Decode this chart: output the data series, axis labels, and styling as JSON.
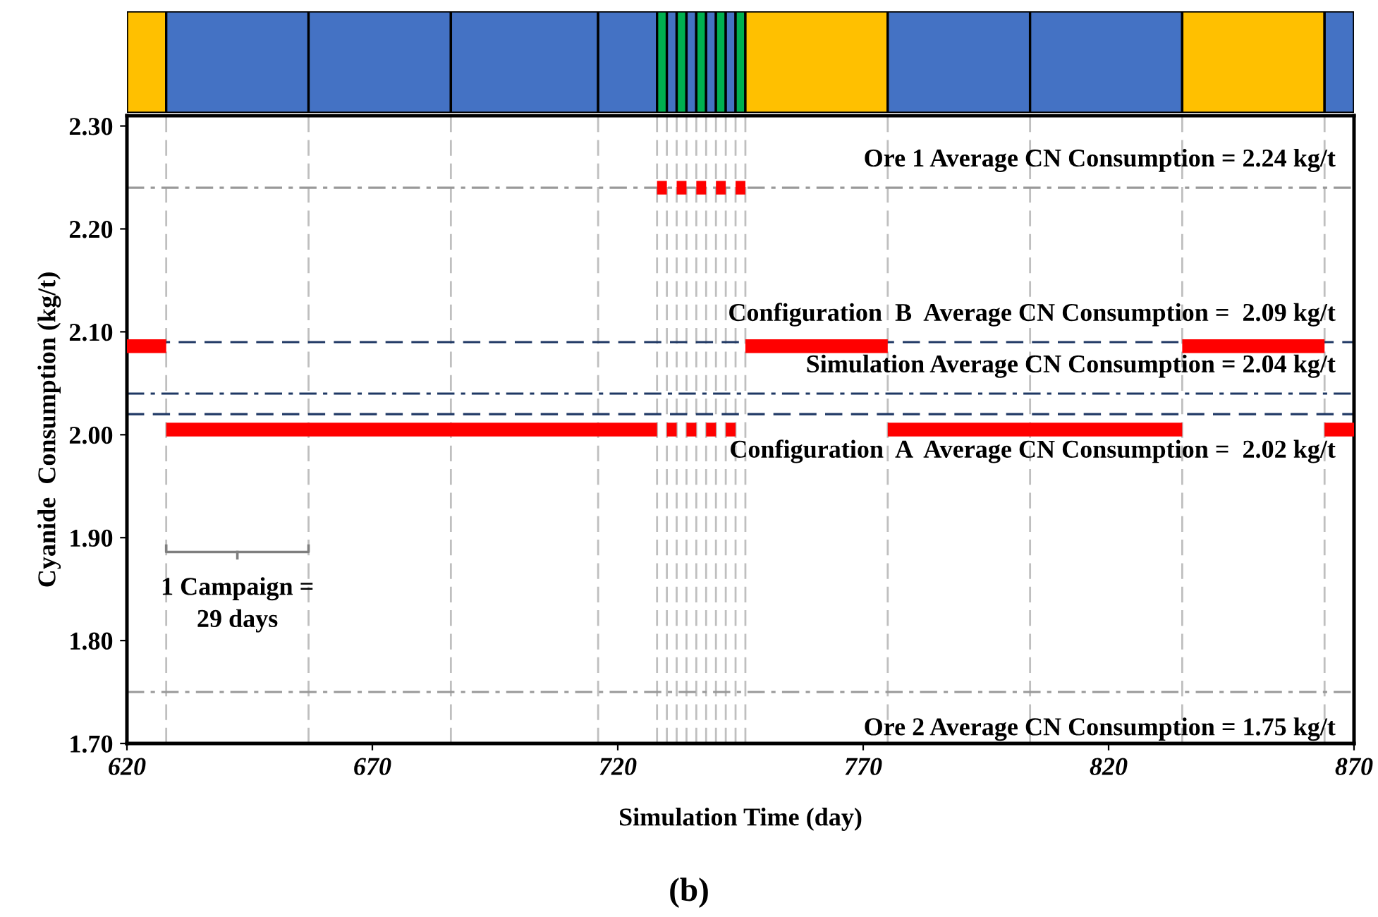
{
  "chart_data": {
    "type": "step",
    "xlabel": "Simulation Time (day)",
    "ylabel": "Cyanide  Consumption (kg/t)",
    "xlim": [
      620,
      870
    ],
    "xticks": [
      620,
      670,
      720,
      770,
      820,
      870
    ],
    "ylim": [
      1.7,
      2.31
    ],
    "yticks": [
      {
        "value": 1.7,
        "label": "1.70"
      },
      {
        "value": 1.8,
        "label": "1.80"
      },
      {
        "value": 1.9,
        "label": "1.90"
      },
      {
        "value": 2.0,
        "label": "2.00"
      },
      {
        "value": 2.1,
        "label": "2.10"
      },
      {
        "value": 2.2,
        "label": "2.20"
      },
      {
        "value": 2.3,
        "label": "2.30"
      }
    ],
    "grid": false,
    "legend": false,
    "marker": "none",
    "line_style": "solid",
    "series": [
      {
        "color": "#ff0000",
        "x": [
          620,
          628,
          728,
          730,
          732,
          734,
          736,
          738,
          740,
          742,
          744,
          746,
          775,
          835,
          864,
          870
        ],
        "values": [
          2.086,
          2.005,
          2.24,
          2.005,
          2.24,
          2.005,
          2.24,
          2.005,
          2.24,
          2.005,
          2.24,
          2.086,
          2.005,
          2.086,
          2.005,
          2.005
        ]
      }
    ],
    "ref_lines": [
      {
        "axis": "y",
        "value": 2.24,
        "label": "Ore 1 Average CN Consumption = 2.24 kg/t",
        "color": "#999999",
        "line_style": "dashdot"
      },
      {
        "axis": "y",
        "value": 2.09,
        "label": "Configuration  B  Average CN Consumption =  2.09 kg/t",
        "color": "#1f3864",
        "line_style": "dashed"
      },
      {
        "axis": "y",
        "value": 2.04,
        "label": "Simulation Average CN Consumption = 2.04 kg/t",
        "color": "#1f3864",
        "line_style": "dashdot"
      },
      {
        "axis": "y",
        "value": 2.02,
        "label": "Configuration  A  Average CN Consumption =  2.02 kg/t",
        "color": "#1f3864",
        "line_style": "dashed"
      },
      {
        "axis": "y",
        "value": 1.75,
        "label": "Ore 2 Average CN Consumption = 1.75 kg/t",
        "color": "#999999",
        "line_style": "dashdot"
      },
      {
        "axis": "x",
        "value": 628,
        "color": "#bfbfbf",
        "line_style": "dashed"
      },
      {
        "axis": "x",
        "value": 657,
        "color": "#bfbfbf",
        "line_style": "dashed"
      },
      {
        "axis": "x",
        "value": 686,
        "color": "#bfbfbf",
        "line_style": "dashed"
      },
      {
        "axis": "x",
        "value": 716,
        "color": "#bfbfbf",
        "line_style": "dashed"
      },
      {
        "axis": "x",
        "value": 728,
        "color": "#bfbfbf",
        "line_style": "dashed"
      },
      {
        "axis": "x",
        "value": 730,
        "color": "#bfbfbf",
        "line_style": "dashed"
      },
      {
        "axis": "x",
        "value": 732,
        "color": "#bfbfbf",
        "line_style": "dashed"
      },
      {
        "axis": "x",
        "value": 734,
        "color": "#bfbfbf",
        "line_style": "dashed"
      },
      {
        "axis": "x",
        "value": 736,
        "color": "#bfbfbf",
        "line_style": "dashed"
      },
      {
        "axis": "x",
        "value": 738,
        "color": "#bfbfbf",
        "line_style": "dashed"
      },
      {
        "axis": "x",
        "value": 740,
        "color": "#bfbfbf",
        "line_style": "dashed"
      },
      {
        "axis": "x",
        "value": 742,
        "color": "#bfbfbf",
        "line_style": "dashed"
      },
      {
        "axis": "x",
        "value": 744,
        "color": "#bfbfbf",
        "line_style": "dashed"
      },
      {
        "axis": "x",
        "value": 746,
        "color": "#bfbfbf",
        "line_style": "dashed"
      },
      {
        "axis": "x",
        "value": 775,
        "color": "#bfbfbf",
        "line_style": "dashed"
      },
      {
        "axis": "x",
        "value": 804,
        "color": "#bfbfbf",
        "line_style": "dashed"
      },
      {
        "axis": "x",
        "value": 835,
        "color": "#bfbfbf",
        "line_style": "dashed"
      },
      {
        "axis": "x",
        "value": 864,
        "color": "#bfbfbf",
        "line_style": "dashed"
      }
    ],
    "annotations": [
      "1 Campaign =\n29 days",
      "(b)"
    ]
  }
}
